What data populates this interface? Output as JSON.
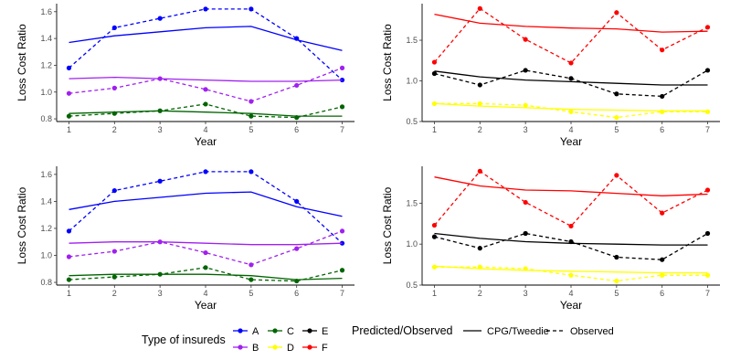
{
  "chart_data": [
    {
      "type": "line",
      "xlabel": "Year",
      "ylabel": "Loss Cost Ratio",
      "x": [
        1,
        2,
        3,
        4,
        5,
        6,
        7
      ],
      "xticks": [
        "1",
        "2",
        "3",
        "4",
        "5",
        "6",
        "7"
      ],
      "ylim": [
        0.78,
        1.66
      ],
      "yticks": [
        0.8,
        1.0,
        1.2,
        1.4,
        1.6
      ],
      "ytick_labels": [
        "0.8",
        "1.0",
        "1.2",
        "1.4",
        "1.6"
      ],
      "series": [
        {
          "group": "A",
          "color": "#0000FF",
          "predicted": [
            1.37,
            1.42,
            1.45,
            1.48,
            1.49,
            1.39,
            1.31
          ],
          "observed": [
            1.18,
            1.48,
            1.55,
            1.62,
            1.62,
            1.4,
            1.09
          ]
        },
        {
          "group": "B",
          "color": "#A020F0",
          "predicted": [
            1.1,
            1.11,
            1.1,
            1.09,
            1.08,
            1.08,
            1.09
          ],
          "observed": [
            0.99,
            1.03,
            1.1,
            1.02,
            0.93,
            1.05,
            1.18
          ]
        },
        {
          "group": "C",
          "color": "#006400",
          "predicted": [
            0.84,
            0.85,
            0.86,
            0.85,
            0.84,
            0.82,
            0.82
          ],
          "observed": [
            0.82,
            0.84,
            0.86,
            0.91,
            0.82,
            0.81,
            0.89
          ]
        }
      ]
    },
    {
      "type": "line",
      "xlabel": "Year",
      "ylabel": "Loss Cost Ratio",
      "x": [
        1,
        2,
        3,
        4,
        5,
        6,
        7
      ],
      "xticks": [
        "1",
        "2",
        "3",
        "4",
        "5",
        "6",
        "7"
      ],
      "ylim": [
        0.5,
        1.95
      ],
      "yticks": [
        0.5,
        1.0,
        1.5
      ],
      "ytick_labels": [
        "0.5",
        "1.0",
        "1.5"
      ],
      "series": [
        {
          "group": "D",
          "color": "#FFFF00",
          "predicted": [
            0.72,
            0.69,
            0.67,
            0.65,
            0.64,
            0.63,
            0.63
          ],
          "observed": [
            0.72,
            0.72,
            0.7,
            0.62,
            0.55,
            0.62,
            0.62
          ]
        },
        {
          "group": "E",
          "color": "#000000",
          "predicted": [
            1.12,
            1.05,
            1.01,
            0.99,
            0.97,
            0.95,
            0.95
          ],
          "observed": [
            1.09,
            0.95,
            1.13,
            1.03,
            0.84,
            0.81,
            1.13
          ]
        },
        {
          "group": "F",
          "color": "#FF0000",
          "predicted": [
            1.82,
            1.71,
            1.67,
            1.65,
            1.64,
            1.6,
            1.61
          ],
          "observed": [
            1.23,
            1.89,
            1.51,
            1.22,
            1.84,
            1.38,
            1.66
          ]
        }
      ]
    },
    {
      "type": "line",
      "xlabel": "Year",
      "ylabel": "Loss Cost Ratio",
      "x": [
        1,
        2,
        3,
        4,
        5,
        6,
        7
      ],
      "xticks": [
        "1",
        "2",
        "3",
        "4",
        "5",
        "6",
        "7"
      ],
      "ylim": [
        0.78,
        1.66
      ],
      "yticks": [
        0.8,
        1.0,
        1.2,
        1.4,
        1.6
      ],
      "ytick_labels": [
        "0.8",
        "1.0",
        "1.2",
        "1.4",
        "1.6"
      ],
      "series": [
        {
          "group": "A",
          "color": "#0000FF",
          "predicted": [
            1.34,
            1.4,
            1.43,
            1.46,
            1.47,
            1.36,
            1.29
          ],
          "observed": [
            1.18,
            1.48,
            1.55,
            1.62,
            1.62,
            1.4,
            1.09
          ]
        },
        {
          "group": "B",
          "color": "#A020F0",
          "predicted": [
            1.09,
            1.1,
            1.1,
            1.09,
            1.08,
            1.08,
            1.09
          ],
          "observed": [
            0.99,
            1.03,
            1.1,
            1.02,
            0.93,
            1.05,
            1.18
          ]
        },
        {
          "group": "C",
          "color": "#006400",
          "predicted": [
            0.85,
            0.86,
            0.86,
            0.86,
            0.85,
            0.82,
            0.83
          ],
          "observed": [
            0.82,
            0.84,
            0.86,
            0.91,
            0.82,
            0.81,
            0.89
          ]
        }
      ]
    },
    {
      "type": "line",
      "xlabel": "Year",
      "ylabel": "Loss Cost Ratio",
      "x": [
        1,
        2,
        3,
        4,
        5,
        6,
        7
      ],
      "xticks": [
        "1",
        "2",
        "3",
        "4",
        "5",
        "6",
        "7"
      ],
      "ylim": [
        0.5,
        1.95
      ],
      "yticks": [
        0.5,
        1.0,
        1.5
      ],
      "ytick_labels": [
        "0.5",
        "1.0",
        "1.5"
      ],
      "series": [
        {
          "group": "D",
          "color": "#FFFF00",
          "predicted": [
            0.73,
            0.7,
            0.68,
            0.67,
            0.66,
            0.65,
            0.65
          ],
          "observed": [
            0.72,
            0.72,
            0.7,
            0.62,
            0.55,
            0.62,
            0.62
          ]
        },
        {
          "group": "E",
          "color": "#000000",
          "predicted": [
            1.13,
            1.07,
            1.03,
            1.01,
            1.0,
            0.99,
            0.99
          ],
          "observed": [
            1.09,
            0.95,
            1.13,
            1.03,
            0.84,
            0.81,
            1.13
          ]
        },
        {
          "group": "F",
          "color": "#FF0000",
          "predicted": [
            1.82,
            1.71,
            1.66,
            1.65,
            1.62,
            1.59,
            1.61
          ],
          "observed": [
            1.23,
            1.89,
            1.51,
            1.22,
            1.84,
            1.38,
            1.66
          ]
        }
      ]
    }
  ],
  "legend": {
    "groups_title": "Type of insureds",
    "groups": [
      {
        "label": "A",
        "color": "#0000FF"
      },
      {
        "label": "B",
        "color": "#A020F0"
      },
      {
        "label": "C",
        "color": "#006400"
      },
      {
        "label": "D",
        "color": "#FFFF00"
      },
      {
        "label": "E",
        "color": "#000000"
      },
      {
        "label": "F",
        "color": "#FF0000"
      }
    ],
    "linetype_title": "Predicted/Observed",
    "linetypes": [
      {
        "label": "CPG/Tweedie",
        "style": "solid"
      },
      {
        "label": "Observed",
        "style": "dashed"
      }
    ]
  }
}
